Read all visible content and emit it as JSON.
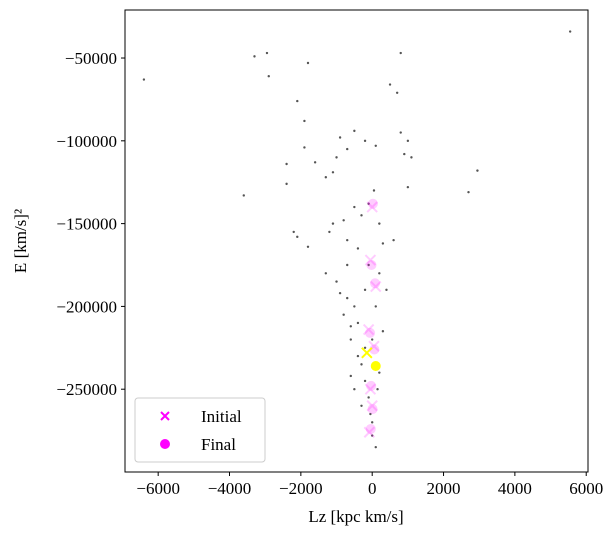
{
  "chart_data": {
    "type": "scatter",
    "xlabel": "Lz [kpc km/s]",
    "ylabel": "E [km/s]²",
    "xlim": [
      -6930,
      6050
    ],
    "ylim": [
      -300000,
      -21000
    ],
    "xticks": [
      {
        "value": -6000,
        "label": "−6000"
      },
      {
        "value": -4000,
        "label": "−4000"
      },
      {
        "value": -2000,
        "label": "−2000"
      },
      0,
      2000,
      4000,
      6000
    ],
    "yticks": [
      {
        "value": -50000,
        "label": "−50000"
      },
      {
        "value": -100000,
        "label": "−100000"
      },
      {
        "value": -150000,
        "label": "−150000"
      },
      {
        "value": -200000,
        "label": "−200000"
      },
      {
        "value": -250000,
        "label": "−250000"
      }
    ],
    "legend_loc": "lower left",
    "series": [
      {
        "color": "#555555",
        "marker": "dot",
        "x": [
          5550,
          -6400,
          -3300,
          -2950,
          -2900,
          -1800,
          800,
          500,
          -2100,
          -1900,
          700,
          -1900,
          -2400,
          -2400,
          -1600,
          -1000,
          -900,
          -700,
          -500,
          -200,
          100,
          -1300,
          -1100,
          -3600,
          800,
          1000,
          900,
          1100,
          1000,
          2950,
          2700,
          -2200,
          -2100,
          -1800,
          -1200,
          -1100,
          -800,
          -700,
          -500,
          -300,
          -400,
          200,
          300,
          -1300,
          -1000,
          -700,
          -500,
          -400,
          -600,
          -300,
          -200,
          -100,
          0,
          100,
          -200,
          -800,
          -300,
          0,
          200,
          100,
          -100,
          200,
          300,
          -400,
          0,
          -700,
          -900,
          -600,
          -200,
          150,
          -50,
          400,
          600,
          -100,
          50,
          -600,
          -500
        ],
        "values": [
          -34000,
          -63000,
          -49000,
          -47000,
          -61000,
          -53000,
          -47000,
          -66000,
          -76000,
          -88000,
          -71000,
          -104000,
          -114000,
          -126000,
          -113000,
          -110000,
          -98000,
          -105000,
          -94000,
          -100000,
          -103000,
          -122000,
          -119000,
          -133000,
          -95000,
          -100000,
          -108000,
          -110000,
          -128000,
          -118000,
          -131000,
          -155000,
          -158000,
          -164000,
          -155000,
          -150000,
          -148000,
          -160000,
          -140000,
          -145000,
          -165000,
          -150000,
          -162000,
          -180000,
          -185000,
          -195000,
          -200000,
          -210000,
          -220000,
          -235000,
          -245000,
          -255000,
          -270000,
          -285000,
          -190000,
          -205000,
          -260000,
          -220000,
          -240000,
          -200000,
          -175000,
          -180000,
          -215000,
          -230000,
          -278000,
          -175000,
          -192000,
          -212000,
          -225000,
          -250000,
          -265000,
          -190000,
          -160000,
          -138000,
          -130000,
          -242000,
          -250000
        ]
      },
      {
        "name": "Initial",
        "color": "#ff00ff",
        "marker": "x",
        "alpha": 0.2,
        "x": [
          0,
          -50,
          100,
          -100,
          50,
          -50,
          0,
          -80
        ],
        "values": [
          -140000,
          -172000,
          -188000,
          -214000,
          -224000,
          -250000,
          -260000,
          -276000
        ]
      },
      {
        "name": "Final",
        "color": "#ff00ff",
        "marker": "o",
        "alpha": 0.2,
        "x": [
          20,
          -20,
          80,
          -60,
          60,
          -30,
          10,
          -40
        ],
        "values": [
          -138000,
          -175000,
          -186000,
          -216000,
          -226000,
          -248000,
          -262000,
          -274000
        ]
      },
      {
        "color": "#ffff00",
        "marker": "x",
        "x": [
          -150
        ],
        "values": [
          -228000
        ]
      },
      {
        "color": "#ffff00",
        "marker": "o",
        "x": [
          100
        ],
        "values": [
          -236000
        ]
      }
    ]
  }
}
